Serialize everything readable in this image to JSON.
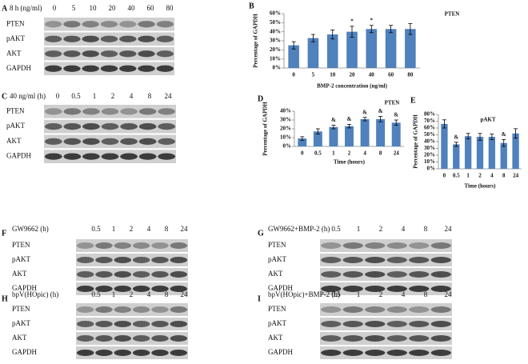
{
  "chart_data": [
    {
      "type": "bar",
      "panel": "B",
      "title": "PTEN",
      "y_label": "Percentage of GAPDH",
      "x_label": "BMP-2 concentration (ng/ml)",
      "categories": [
        "0",
        "5",
        "10",
        "20",
        "40",
        "60",
        "80"
      ],
      "values": [
        25,
        33,
        37,
        40,
        43,
        43,
        43
      ],
      "errors": [
        4,
        4,
        5,
        6,
        4,
        4,
        6
      ],
      "color": "#4f81bd",
      "ylim": [
        0,
        60
      ],
      "yticks": [
        {
          "value": 0,
          "label": "0%"
        },
        {
          "value": 10,
          "label": "10%"
        },
        {
          "value": 20,
          "label": "20%"
        },
        {
          "value": 30,
          "label": "30%"
        },
        {
          "value": 40,
          "label": "40%"
        },
        {
          "value": 50,
          "label": "50%"
        },
        {
          "value": 60,
          "label": "60%"
        }
      ],
      "annotations": [
        {
          "category": "20",
          "text": "*"
        },
        {
          "category": "40",
          "text": "*"
        }
      ]
    },
    {
      "type": "bar",
      "panel": "D",
      "title": "PTEN",
      "y_label": "Percentage of GAPDH",
      "x_label": "Time (hours)",
      "categories": [
        "0",
        "0.5",
        "1",
        "2",
        "4",
        "8",
        "24"
      ],
      "values": [
        9,
        17,
        22,
        23,
        31,
        31,
        27
      ],
      "errors": [
        2,
        3,
        2,
        2,
        2,
        3,
        3
      ],
      "color": "#4f81bd",
      "ylim": [
        0,
        40
      ],
      "yticks": [
        {
          "value": 0,
          "label": "0%"
        },
        {
          "value": 10,
          "label": "10%"
        },
        {
          "value": 20,
          "label": "20%"
        },
        {
          "value": 30,
          "label": "30%"
        },
        {
          "value": 40,
          "label": "40%"
        }
      ],
      "annotations": [
        {
          "category": "1",
          "text": "&"
        },
        {
          "category": "2",
          "text": "&"
        },
        {
          "category": "4",
          "text": "&"
        },
        {
          "category": "8",
          "text": "&"
        },
        {
          "category": "24",
          "text": "&"
        }
      ]
    },
    {
      "type": "bar",
      "panel": "E",
      "title": "pAKT",
      "y_label": "Percentage of GAPDH",
      "x_label": "Time (hours)",
      "categories": [
        "0",
        "0.5",
        "1",
        "2",
        "4",
        "8",
        "24"
      ],
      "values": [
        66,
        36,
        48,
        47,
        47,
        38,
        52
      ],
      "errors": [
        6,
        3,
        4,
        5,
        4,
        5,
        7
      ],
      "color": "#4f81bd",
      "ylim": [
        0,
        80
      ],
      "yticks": [
        {
          "value": 0,
          "label": "0%"
        },
        {
          "value": 10,
          "label": "10%"
        },
        {
          "value": 20,
          "label": "20%"
        },
        {
          "value": 30,
          "label": "30%"
        },
        {
          "value": 40,
          "label": "40%"
        },
        {
          "value": 50,
          "label": "50%"
        },
        {
          "value": 60,
          "label": "60%"
        },
        {
          "value": 70,
          "label": "70%"
        },
        {
          "value": 80,
          "label": "80%"
        }
      ],
      "annotations": [
        {
          "category": "0.5",
          "text": "&"
        },
        {
          "category": "8",
          "text": "&"
        }
      ]
    }
  ],
  "blots": [
    {
      "panel": "A",
      "condition": "8 h (ng/ml)",
      "lanes": [
        "0",
        "5",
        "10",
        "20",
        "40",
        "60",
        "80"
      ],
      "rows": [
        "PTEN",
        "pAKT",
        "AKT",
        "GAPDH"
      ]
    },
    {
      "panel": "C",
      "condition": "40 ng/ml (h)",
      "lanes": [
        "0",
        "0.5",
        "1",
        "2",
        "4",
        "8",
        "24"
      ],
      "rows": [
        "PTEN",
        "pAKT",
        "AKT",
        "GAPDH"
      ]
    },
    {
      "panel": "F",
      "condition": "GW9662 (h)",
      "lanes": [
        "0.5",
        "1",
        "2",
        "4",
        "8",
        "24"
      ],
      "rows": [
        "PTEN",
        "pAKT",
        "AKT",
        "GAPDH"
      ]
    },
    {
      "panel": "G",
      "condition": "GW9662+BMP-2 (h)",
      "lanes": [
        "0.5",
        "1",
        "2",
        "4",
        "8",
        "24"
      ],
      "rows": [
        "PTEN",
        "pAKT",
        "AKT",
        "GAPDH"
      ]
    },
    {
      "panel": "H",
      "condition": "bpV(HOpic) (h)",
      "lanes": [
        "0.5",
        "1",
        "2",
        "4",
        "8",
        "24"
      ],
      "rows": [
        "PTEN",
        "pAKT",
        "AKT",
        "GAPDH"
      ]
    },
    {
      "panel": "I",
      "condition": "bpV(HOpic)+BMP-2 (h)",
      "lanes": [
        "0.5",
        "1",
        "2",
        "4",
        "8",
        "24"
      ],
      "rows": [
        "PTEN",
        "pAKT",
        "AKT",
        "GAPDH"
      ]
    }
  ]
}
